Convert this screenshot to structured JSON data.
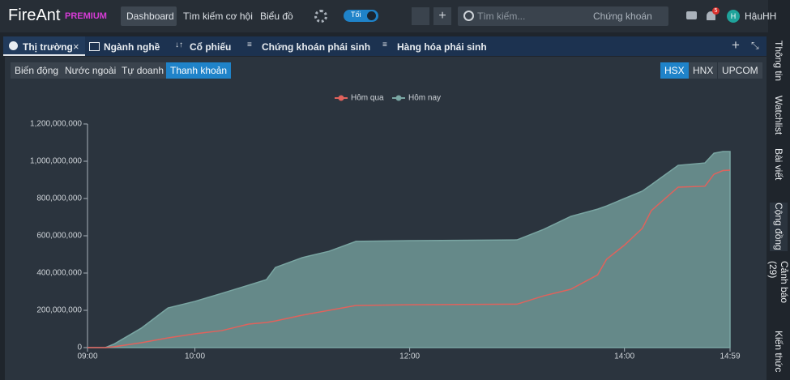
{
  "ui": {
    "brand": "FireAnt",
    "brand_badge": "PREMIUM",
    "nav": [
      "Dashboard",
      "Tìm kiếm cơ hội",
      "Biểu đồ"
    ],
    "theme_toggle": "Tối",
    "search_placeholder": "Tìm kiếm...",
    "search_scope": "Chứng khoán",
    "notification_count": "5",
    "user_initial": "H",
    "user_name": "HậuHH",
    "tabs": [
      "Thị trường",
      "Ngành nghề",
      "Cổ phiếu",
      "Chứng khoán phái sinh",
      "Hàng hóa phái sinh"
    ],
    "sub_tabs": [
      "Biến động",
      "Nước ngoài",
      "Tự doanh",
      "Thanh khoản"
    ],
    "exchanges": [
      "HSX",
      "HNX",
      "UPCOM"
    ],
    "sidebar": [
      "Thông tin",
      "Watchlist",
      "Bài viết",
      "Cộng đồng",
      "Cảnh báo (29)",
      "Kiến thức"
    ]
  },
  "chart_data": {
    "type": "area",
    "x": [
      "09:00",
      "09:10",
      "09:15",
      "09:30",
      "09:45",
      "10:00",
      "10:15",
      "10:30",
      "10:40",
      "10:45",
      "11:00",
      "11:15",
      "11:30",
      "12:00",
      "13:00",
      "13:15",
      "13:30",
      "13:45",
      "13:50",
      "14:00",
      "14:10",
      "14:15",
      "14:30",
      "14:45",
      "14:50",
      "14:55",
      "14:59"
    ],
    "series": [
      {
        "name": "Hôm qua",
        "color": "#e0625c",
        "values": [
          0,
          0,
          5000000,
          26000000,
          52000000,
          74000000,
          91000000,
          126000000,
          135000000,
          143000000,
          174000000,
          200000000,
          226000000,
          230000000,
          233000000,
          278000000,
          313000000,
          390000000,
          474000000,
          550000000,
          640000000,
          735000000,
          861000000,
          866000000,
          930000000,
          950000000,
          952000000
        ]
      },
      {
        "name": "Hôm nay",
        "color": "#7aa6a3",
        "values": [
          0,
          0,
          20000000,
          104000000,
          213000000,
          248000000,
          291000000,
          335000000,
          365000000,
          430000000,
          483000000,
          517000000,
          570000000,
          574000000,
          578000000,
          635000000,
          704000000,
          743000000,
          760000000,
          800000000,
          840000000,
          874000000,
          978000000,
          991000000,
          1043000000,
          1052000000,
          1052000000
        ]
      }
    ],
    "xlim": [
      "09:00",
      "14:59"
    ],
    "xticks": [
      "09:00",
      "10:00",
      "12:00",
      "14:00",
      "14:59"
    ],
    "ylim": [
      0,
      1200000000
    ],
    "yticks": [
      {
        "value": 0,
        "label": "0"
      },
      {
        "value": 200000000,
        "label": "200,000,000"
      },
      {
        "value": 400000000,
        "label": "400,000,000"
      },
      {
        "value": 600000000,
        "label": "600,000,000"
      },
      {
        "value": 800000000,
        "label": "800,000,000"
      },
      {
        "value": 1000000000,
        "label": "1,000,000,000"
      },
      {
        "value": 1200000000,
        "label": "1,200,000,000"
      }
    ]
  }
}
